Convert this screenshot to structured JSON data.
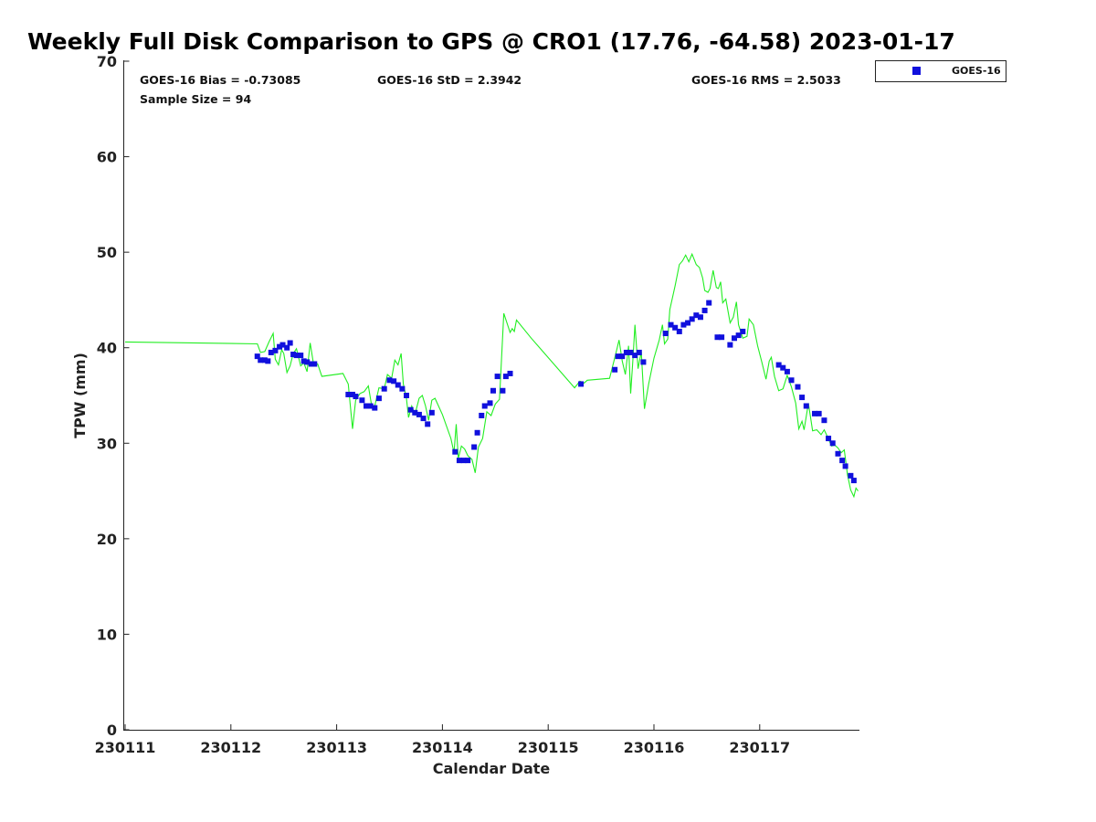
{
  "chart_data": {
    "type": "scatter",
    "title": "Weekly Full Disk Comparison to GPS @ CRO1 (17.76, -64.58) 2023-01-17",
    "xlabel": "Calendar Date",
    "ylabel": "TPW (mm)",
    "xlim": [
      0,
      6.93
    ],
    "ylim": [
      0,
      70
    ],
    "x_tick_values": [
      0,
      1,
      2,
      3,
      4,
      5,
      6
    ],
    "x_tick_labels": [
      "230111",
      "230112",
      "230113",
      "230114",
      "230115",
      "230116",
      "230117"
    ],
    "y_ticks": [
      0,
      10,
      20,
      30,
      40,
      50,
      60,
      70
    ],
    "x_unit": "days since 230111",
    "legend": {
      "position": "outside-top-right",
      "entries": [
        "GOES-16"
      ]
    },
    "stats": {
      "bias": "GOES-16 Bias = -0.73085",
      "std": "GOES-16 StD = 2.3942",
      "rms": "GOES-16 RMS = 2.5033",
      "sample": "Sample Size = 94"
    },
    "colors": {
      "goes": "#1010dd",
      "gps": "#22ee22"
    },
    "series": [
      {
        "name": "GOES-16",
        "marker": "square",
        "points": [
          [
            1.25,
            39.1
          ],
          [
            1.28,
            38.7
          ],
          [
            1.32,
            38.7
          ],
          [
            1.35,
            38.6
          ],
          [
            1.38,
            39.5
          ],
          [
            1.42,
            39.7
          ],
          [
            1.46,
            40.1
          ],
          [
            1.49,
            40.3
          ],
          [
            1.53,
            40.0
          ],
          [
            1.56,
            40.5
          ],
          [
            1.59,
            39.3
          ],
          [
            1.62,
            39.2
          ],
          [
            1.66,
            39.2
          ],
          [
            1.69,
            38.6
          ],
          [
            1.72,
            38.5
          ],
          [
            1.76,
            38.3
          ],
          [
            1.79,
            38.3
          ],
          [
            2.11,
            35.1
          ],
          [
            2.15,
            35.1
          ],
          [
            2.18,
            34.9
          ],
          [
            2.24,
            34.5
          ],
          [
            2.28,
            33.9
          ],
          [
            2.32,
            33.9
          ],
          [
            2.36,
            33.7
          ],
          [
            2.4,
            34.7
          ],
          [
            2.45,
            35.7
          ],
          [
            2.5,
            36.6
          ],
          [
            2.54,
            36.5
          ],
          [
            2.58,
            36.1
          ],
          [
            2.62,
            35.7
          ],
          [
            2.66,
            35.0
          ],
          [
            2.7,
            33.5
          ],
          [
            2.74,
            33.2
          ],
          [
            2.78,
            33.0
          ],
          [
            2.82,
            32.6
          ],
          [
            2.86,
            32.0
          ],
          [
            2.9,
            33.2
          ],
          [
            3.12,
            29.1
          ],
          [
            3.16,
            28.2
          ],
          [
            3.2,
            28.2
          ],
          [
            3.24,
            28.2
          ],
          [
            3.3,
            29.6
          ],
          [
            3.33,
            31.1
          ],
          [
            3.37,
            32.9
          ],
          [
            3.4,
            33.9
          ],
          [
            3.45,
            34.2
          ],
          [
            3.48,
            35.5
          ],
          [
            3.52,
            37.0
          ],
          [
            3.57,
            35.5
          ],
          [
            3.6,
            37.0
          ],
          [
            3.64,
            37.3
          ],
          [
            4.31,
            36.2
          ],
          [
            4.63,
            37.7
          ],
          [
            4.66,
            39.1
          ],
          [
            4.7,
            39.1
          ],
          [
            4.74,
            39.5
          ],
          [
            4.78,
            39.5
          ],
          [
            4.82,
            39.2
          ],
          [
            4.86,
            39.5
          ],
          [
            4.9,
            38.5
          ],
          [
            5.11,
            41.5
          ],
          [
            5.16,
            42.4
          ],
          [
            5.2,
            42.1
          ],
          [
            5.24,
            41.7
          ],
          [
            5.28,
            42.4
          ],
          [
            5.32,
            42.6
          ],
          [
            5.36,
            43.0
          ],
          [
            5.4,
            43.4
          ],
          [
            5.44,
            43.2
          ],
          [
            5.48,
            43.9
          ],
          [
            5.52,
            44.7
          ],
          [
            5.6,
            41.1
          ],
          [
            5.64,
            41.1
          ],
          [
            5.72,
            40.3
          ],
          [
            5.76,
            41.0
          ],
          [
            5.8,
            41.3
          ],
          [
            5.84,
            41.7
          ],
          [
            6.18,
            38.2
          ],
          [
            6.22,
            37.9
          ],
          [
            6.26,
            37.5
          ],
          [
            6.3,
            36.6
          ],
          [
            6.36,
            35.9
          ],
          [
            6.4,
            34.8
          ],
          [
            6.44,
            33.9
          ],
          [
            6.52,
            33.1
          ],
          [
            6.56,
            33.1
          ],
          [
            6.61,
            32.4
          ],
          [
            6.65,
            30.5
          ],
          [
            6.69,
            30.0
          ],
          [
            6.74,
            28.9
          ],
          [
            6.78,
            28.2
          ],
          [
            6.81,
            27.6
          ],
          [
            6.86,
            26.6
          ],
          [
            6.89,
            26.1
          ]
        ]
      },
      {
        "name": "GPS",
        "marker": "line",
        "points": [
          [
            0.0,
            40.6
          ],
          [
            1.25,
            40.4
          ],
          [
            1.28,
            39.5
          ],
          [
            1.32,
            39.6
          ],
          [
            1.36,
            40.6
          ],
          [
            1.4,
            41.5
          ],
          [
            1.42,
            38.8
          ],
          [
            1.45,
            38.2
          ],
          [
            1.48,
            39.8
          ],
          [
            1.5,
            39.4
          ],
          [
            1.53,
            37.4
          ],
          [
            1.56,
            38.1
          ],
          [
            1.59,
            39.4
          ],
          [
            1.62,
            39.9
          ],
          [
            1.66,
            38.1
          ],
          [
            1.69,
            38.4
          ],
          [
            1.72,
            37.5
          ],
          [
            1.75,
            40.5
          ],
          [
            1.78,
            38.4
          ],
          [
            1.82,
            38.3
          ],
          [
            1.86,
            37.0
          ],
          [
            2.06,
            37.3
          ],
          [
            2.11,
            36.2
          ],
          [
            2.15,
            31.5
          ],
          [
            2.18,
            34.5
          ],
          [
            2.22,
            35.2
          ],
          [
            2.26,
            35.4
          ],
          [
            2.3,
            36.0
          ],
          [
            2.33,
            34.0
          ],
          [
            2.36,
            33.9
          ],
          [
            2.4,
            35.8
          ],
          [
            2.45,
            35.7
          ],
          [
            2.48,
            37.2
          ],
          [
            2.52,
            36.8
          ],
          [
            2.55,
            38.7
          ],
          [
            2.58,
            38.2
          ],
          [
            2.61,
            39.4
          ],
          [
            2.63,
            36.2
          ],
          [
            2.66,
            34.7
          ],
          [
            2.68,
            32.7
          ],
          [
            2.71,
            33.9
          ],
          [
            2.74,
            33.0
          ],
          [
            2.78,
            34.7
          ],
          [
            2.81,
            35.0
          ],
          [
            2.84,
            33.9
          ],
          [
            2.87,
            32.4
          ],
          [
            2.9,
            34.5
          ],
          [
            2.93,
            34.7
          ],
          [
            3.0,
            33.0
          ],
          [
            3.08,
            30.5
          ],
          [
            3.11,
            29.0
          ],
          [
            3.13,
            32.0
          ],
          [
            3.15,
            28.4
          ],
          [
            3.18,
            29.7
          ],
          [
            3.21,
            29.4
          ],
          [
            3.24,
            28.7
          ],
          [
            3.28,
            28.3
          ],
          [
            3.31,
            26.9
          ],
          [
            3.34,
            29.6
          ],
          [
            3.38,
            30.5
          ],
          [
            3.42,
            33.3
          ],
          [
            3.46,
            32.9
          ],
          [
            3.5,
            34.1
          ],
          [
            3.54,
            34.6
          ],
          [
            3.58,
            43.6
          ],
          [
            3.64,
            41.6
          ],
          [
            3.66,
            42.0
          ],
          [
            3.68,
            41.7
          ],
          [
            3.7,
            42.9
          ],
          [
            3.84,
            41.0
          ],
          [
            4.25,
            35.8
          ],
          [
            4.3,
            36.5
          ],
          [
            4.34,
            36.3
          ],
          [
            4.37,
            36.6
          ],
          [
            4.58,
            36.8
          ],
          [
            4.64,
            39.4
          ],
          [
            4.67,
            40.8
          ],
          [
            4.7,
            38.6
          ],
          [
            4.73,
            37.2
          ],
          [
            4.76,
            40.2
          ],
          [
            4.78,
            35.2
          ],
          [
            4.8,
            38.5
          ],
          [
            4.82,
            42.4
          ],
          [
            4.85,
            37.8
          ],
          [
            4.88,
            39.6
          ],
          [
            4.91,
            33.6
          ],
          [
            4.95,
            36.2
          ],
          [
            5.0,
            38.9
          ],
          [
            5.05,
            40.8
          ],
          [
            5.08,
            42.4
          ],
          [
            5.1,
            40.4
          ],
          [
            5.13,
            40.9
          ],
          [
            5.15,
            44.0
          ],
          [
            5.2,
            46.5
          ],
          [
            5.24,
            48.7
          ],
          [
            5.27,
            49.1
          ],
          [
            5.3,
            49.7
          ],
          [
            5.33,
            49.0
          ],
          [
            5.36,
            49.8
          ],
          [
            5.4,
            48.7
          ],
          [
            5.43,
            48.4
          ],
          [
            5.46,
            47.3
          ],
          [
            5.48,
            46.0
          ],
          [
            5.51,
            45.8
          ],
          [
            5.53,
            46.2
          ],
          [
            5.56,
            48.1
          ],
          [
            5.59,
            46.3
          ],
          [
            5.61,
            46.2
          ],
          [
            5.63,
            46.9
          ],
          [
            5.65,
            44.7
          ],
          [
            5.68,
            45.1
          ],
          [
            5.72,
            42.6
          ],
          [
            5.75,
            43.2
          ],
          [
            5.78,
            44.8
          ],
          [
            5.8,
            42.4
          ],
          [
            5.84,
            41.0
          ],
          [
            5.88,
            41.2
          ],
          [
            5.9,
            43.0
          ],
          [
            5.94,
            42.4
          ],
          [
            5.98,
            40.2
          ],
          [
            6.02,
            38.5
          ],
          [
            6.06,
            36.7
          ],
          [
            6.09,
            38.6
          ],
          [
            6.11,
            39.0
          ],
          [
            6.14,
            37.0
          ],
          [
            6.18,
            35.5
          ],
          [
            6.22,
            35.7
          ],
          [
            6.26,
            37.1
          ],
          [
            6.3,
            35.9
          ],
          [
            6.34,
            34.2
          ],
          [
            6.37,
            31.5
          ],
          [
            6.4,
            32.3
          ],
          [
            6.42,
            31.4
          ],
          [
            6.46,
            34.2
          ],
          [
            6.5,
            31.3
          ],
          [
            6.54,
            31.4
          ],
          [
            6.58,
            30.9
          ],
          [
            6.61,
            31.4
          ],
          [
            6.64,
            30.7
          ],
          [
            6.68,
            29.7
          ],
          [
            6.71,
            29.8
          ],
          [
            6.74,
            29.5
          ],
          [
            6.77,
            29.0
          ],
          [
            6.8,
            29.3
          ],
          [
            6.83,
            26.7
          ],
          [
            6.86,
            25.1
          ],
          [
            6.89,
            24.4
          ],
          [
            6.91,
            25.3
          ],
          [
            6.93,
            25.0
          ]
        ]
      }
    ]
  }
}
